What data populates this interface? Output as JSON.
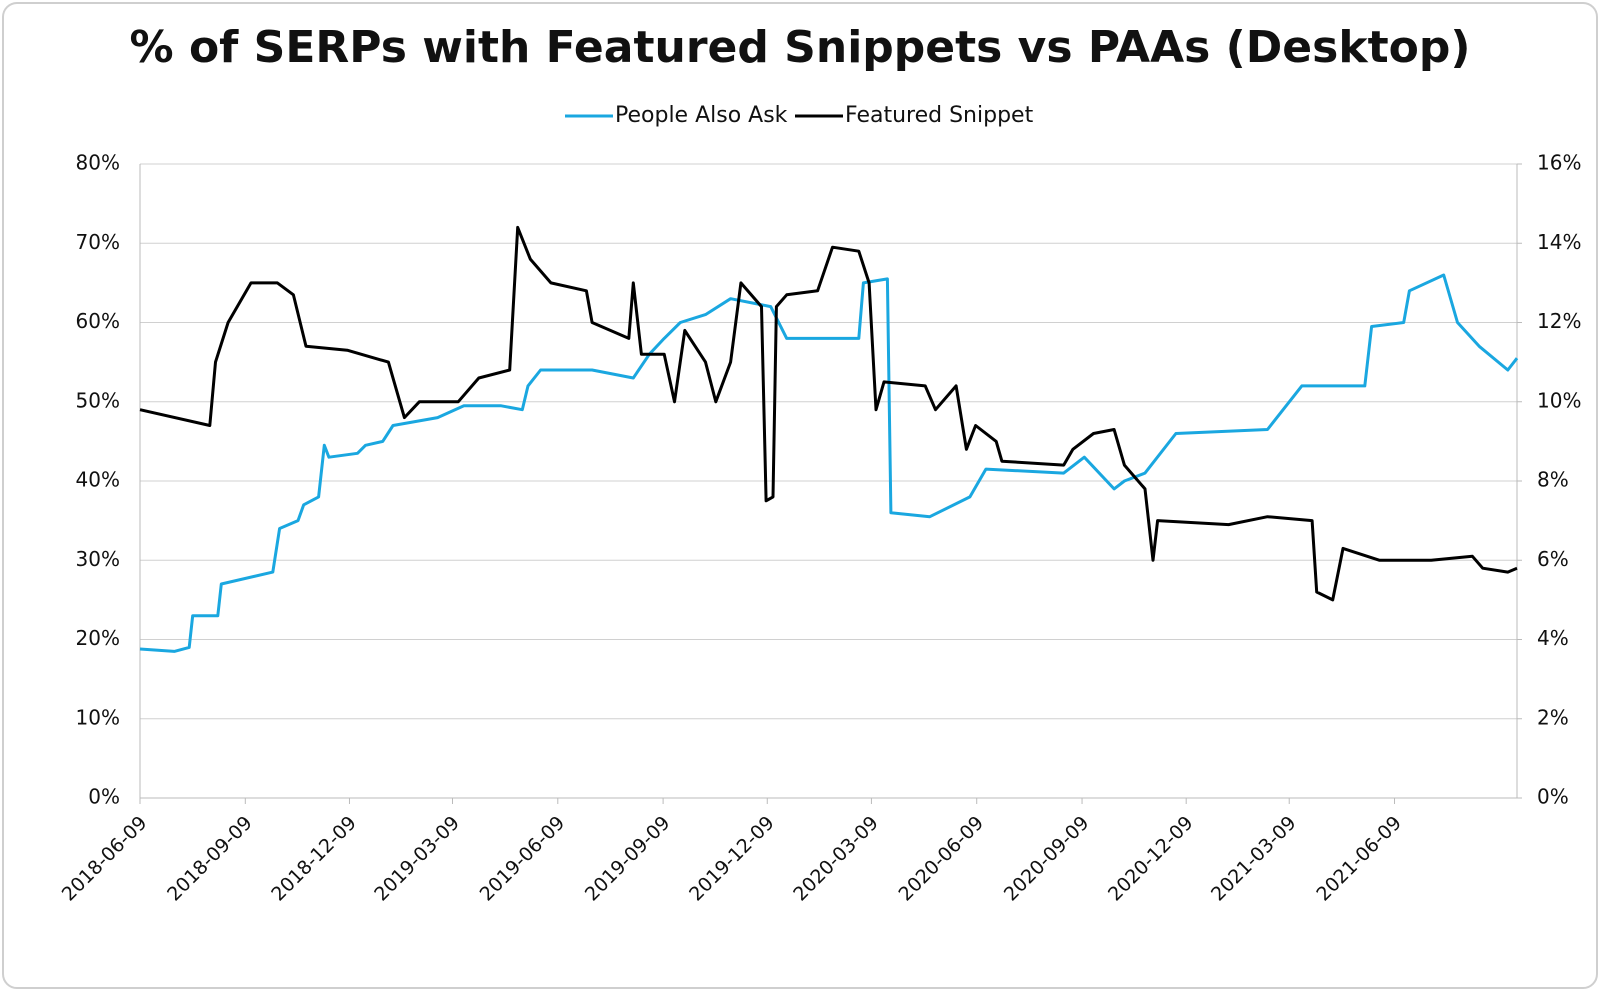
{
  "chart_data": {
    "type": "line",
    "title": "% of SERPs with Featured Snippets vs PAAs (Desktop)",
    "xlim": [
      "2018-06-09",
      "2021-09-24"
    ],
    "xticks": [
      "2018-06-09",
      "2018-09-09",
      "2018-12-09",
      "2019-03-09",
      "2019-06-09",
      "2019-09-09",
      "2019-12-09",
      "2020-03-09",
      "2020-06-09",
      "2020-09-09",
      "2020-12-09",
      "2021-03-09",
      "2021-06-09"
    ],
    "ylim": [
      0,
      80
    ],
    "yticks": [
      {
        "value": 0,
        "label": "0%"
      },
      {
        "value": 10,
        "label": "10%"
      },
      {
        "value": 20,
        "label": "20%"
      },
      {
        "value": 30,
        "label": "30%"
      },
      {
        "value": 40,
        "label": "40%"
      },
      {
        "value": 50,
        "label": "50%"
      },
      {
        "value": 60,
        "label": "60%"
      },
      {
        "value": 70,
        "label": "70%"
      },
      {
        "value": 80,
        "label": "80%"
      }
    ],
    "y2lim": [
      0,
      16
    ],
    "y2ticks": [
      {
        "value": 0,
        "label": "0%"
      },
      {
        "value": 2,
        "label": "2%"
      },
      {
        "value": 4,
        "label": "4%"
      },
      {
        "value": 6,
        "label": "6%"
      },
      {
        "value": 8,
        "label": "8%"
      },
      {
        "value": 10,
        "label": "10%"
      },
      {
        "value": 12,
        "label": "12%"
      },
      {
        "value": 14,
        "label": "14%"
      },
      {
        "value": 16,
        "label": "16%"
      }
    ],
    "grid": true,
    "legend": "top",
    "series": [
      {
        "name": "People Also Ask",
        "color": "#1aa7e0",
        "axis": "y",
        "x": [
          "2018-06-09",
          "2018-07-09",
          "2018-07-22",
          "2018-07-25",
          "2018-08-16",
          "2018-08-19",
          "2018-10-03",
          "2018-10-09",
          "2018-10-25",
          "2018-10-30",
          "2018-11-12",
          "2018-11-17",
          "2018-11-21",
          "2018-12-16",
          "2018-12-23",
          "2019-01-07",
          "2019-01-16",
          "2019-02-24",
          "2019-03-19",
          "2019-04-20",
          "2019-05-09",
          "2019-05-14",
          "2019-05-25",
          "2019-07-09",
          "2019-08-14",
          "2019-08-28",
          "2019-09-10",
          "2019-09-24",
          "2019-10-16",
          "2019-11-07",
          "2019-12-12",
          "2019-12-26",
          "2020-02-27",
          "2020-03-02",
          "2020-03-23",
          "2020-03-26",
          "2020-04-29",
          "2020-06-03",
          "2020-06-17",
          "2020-08-24",
          "2020-09-11",
          "2020-10-07",
          "2020-10-16",
          "2020-11-03",
          "2020-11-30",
          "2021-02-18",
          "2021-03-20",
          "2021-05-14",
          "2021-05-20",
          "2021-06-17",
          "2021-06-22",
          "2021-07-22",
          "2021-08-03",
          "2021-08-22",
          "2021-09-16",
          "2021-09-24"
        ],
        "values": [
          18.8,
          18.5,
          19,
          23,
          23,
          27,
          28.5,
          34,
          35,
          37,
          38,
          44.5,
          43,
          43.5,
          44.5,
          45,
          47,
          48,
          49.5,
          49.5,
          49,
          52,
          54,
          54,
          53,
          56,
          58,
          60,
          61,
          63,
          62,
          58,
          58,
          65,
          65.5,
          36,
          35.5,
          38,
          41.5,
          41,
          43,
          39,
          40,
          41,
          46,
          46.5,
          52,
          52,
          59.5,
          60,
          64,
          66,
          60,
          57,
          54,
          55.5
        ]
      },
      {
        "name": "Featured Snippet",
        "color": "#000000",
        "axis": "y2",
        "x": [
          "2018-06-09",
          "2018-08-09",
          "2018-08-14",
          "2018-08-25",
          "2018-09-14",
          "2018-10-07",
          "2018-10-21",
          "2018-11-01",
          "2018-12-07",
          "2019-01-12",
          "2019-01-26",
          "2019-02-08",
          "2019-03-14",
          "2019-04-01",
          "2019-04-28",
          "2019-05-05",
          "2019-05-16",
          "2019-06-03",
          "2019-07-04",
          "2019-07-09",
          "2019-08-10",
          "2019-08-14",
          "2019-08-21",
          "2019-09-10",
          "2019-09-19",
          "2019-09-28",
          "2019-10-16",
          "2019-10-25",
          "2019-11-07",
          "2019-11-16",
          "2019-12-04",
          "2019-12-08",
          "2019-12-14",
          "2019-12-17",
          "2019-12-26",
          "2020-01-22",
          "2020-02-04",
          "2020-02-27",
          "2020-03-07",
          "2020-03-13",
          "2020-03-20",
          "2020-04-25",
          "2020-05-04",
          "2020-05-22",
          "2020-05-31",
          "2020-06-08",
          "2020-06-26",
          "2020-07-01",
          "2020-08-24",
          "2020-09-01",
          "2020-09-19",
          "2020-10-07",
          "2020-10-16",
          "2020-11-03",
          "2020-11-10",
          "2020-11-14",
          "2021-01-15",
          "2021-02-18",
          "2021-03-29",
          "2021-04-02",
          "2021-04-16",
          "2021-04-25",
          "2021-05-27",
          "2021-07-11",
          "2021-08-16",
          "2021-08-25",
          "2021-09-16",
          "2021-09-24"
        ],
        "values": [
          9.8,
          9.4,
          11,
          12,
          13,
          13,
          12.7,
          11.4,
          11.3,
          11,
          9.6,
          10,
          10,
          10.6,
          10.8,
          14.4,
          13.6,
          13,
          12.8,
          12,
          11.6,
          13,
          11.2,
          11.2,
          10,
          11.8,
          11,
          10,
          11,
          13,
          12.4,
          7.5,
          7.6,
          12.4,
          12.7,
          12.8,
          13.9,
          13.8,
          13,
          9.8,
          10.5,
          10.4,
          9.8,
          10.4,
          8.8,
          9.4,
          9,
          8.5,
          8.4,
          8.8,
          9.2,
          9.3,
          8.4,
          7.8,
          6,
          7,
          6.9,
          7.1,
          7,
          5.2,
          5,
          6.3,
          6,
          6,
          6.1,
          5.8,
          5.7,
          5.8
        ]
      }
    ]
  }
}
